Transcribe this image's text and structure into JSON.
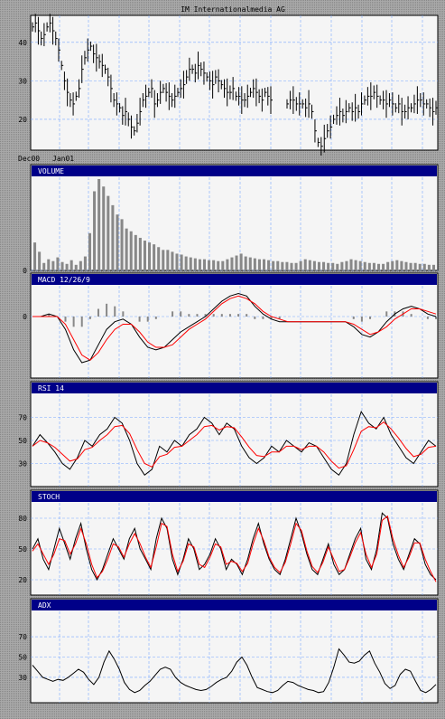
{
  "chart_data": {
    "type": "line",
    "title": "IM Internationalmedia AG",
    "x_start_labels": [
      "Dec00",
      "Jan01"
    ],
    "panels": [
      {
        "id": "price",
        "type": "ohlc",
        "title": "",
        "ylim": [
          12,
          47
        ],
        "yticks": [
          20,
          30,
          40
        ],
        "grid": true,
        "series": [
          {
            "values": [
              44,
              45,
              43,
              41,
              42,
              44,
              45,
              43,
              41,
              38,
              34,
              30,
              27,
              25,
              24,
              26,
              28,
              33,
              36,
              38,
              39,
              37,
              36,
              35,
              34,
              33,
              31,
              28,
              25,
              24,
              23,
              21,
              22,
              20,
              18,
              17,
              19,
              22,
              25,
              26,
              27,
              28,
              24,
              25,
              27,
              28,
              27,
              26,
              25,
              26,
              27,
              28,
              29,
              31,
              33,
              33,
              32,
              34,
              33,
              32,
              31,
              30,
              29,
              31,
              30,
              29,
              28,
              27,
              27,
              28,
              26,
              26,
              25,
              25,
              26,
              27,
              28,
              27,
              26,
              25,
              27,
              26,
              25
            ],
            "gaps": [
              [
                58,
                64
              ]
            ]
          },
          {
            "values": [
              24,
              25,
              25,
              24,
              24,
              24,
              23,
              24,
              22,
              17,
              14,
              13,
              15,
              17,
              18,
              20,
              21,
              22,
              21,
              22,
              23,
              22,
              23,
              22,
              24,
              25,
              26,
              26,
              27,
              26,
              25,
              25,
              24,
              25,
              24,
              23,
              24,
              22,
              22,
              23,
              23,
              24,
              25,
              25,
              24,
              24,
              23,
              22,
              23
            ]
          }
        ]
      },
      {
        "id": "volume",
        "type": "bar",
        "title": "VOLUME",
        "ylim": [
          0,
          100
        ],
        "yticks": [
          0
        ],
        "values": [
          30,
          20,
          8,
          12,
          10,
          14,
          9,
          7,
          11,
          6,
          10,
          15,
          40,
          85,
          98,
          90,
          80,
          70,
          60,
          55,
          45,
          42,
          38,
          35,
          32,
          30,
          28,
          25,
          22,
          22,
          20,
          18,
          17,
          15,
          14,
          13,
          12,
          12,
          11,
          11,
          10,
          10,
          12,
          14,
          16,
          18,
          15,
          14,
          13,
          12,
          12,
          11,
          10,
          10,
          9,
          9,
          8,
          8,
          10,
          12,
          11,
          10,
          9,
          9,
          8,
          8,
          7,
          9,
          10,
          12,
          11,
          10,
          9,
          8,
          8,
          7,
          7,
          9,
          10,
          11,
          10,
          9,
          8,
          8,
          7,
          7,
          6,
          6
        ]
      },
      {
        "id": "macd",
        "type": "line",
        "title": "MACD 12/26/9",
        "ylim": [
          -2.4,
          1.2
        ],
        "yticks": [
          0
        ],
        "series": [
          {
            "color": "#000000",
            "values": [
              0,
              0,
              0.1,
              0,
              -0.5,
              -1.3,
              -1.8,
              -1.7,
              -1.1,
              -0.5,
              -0.2,
              -0.1,
              -0.3,
              -0.8,
              -1.2,
              -1.3,
              -1.2,
              -0.9,
              -0.6,
              -0.4,
              -0.2,
              0,
              0.3,
              0.6,
              0.8,
              0.9,
              0.8,
              0.4,
              0.1,
              -0.1,
              -0.2,
              -0.2,
              -0.2,
              -0.2,
              -0.2,
              -0.2,
              -0.2,
              -0.2,
              -0.2,
              -0.4,
              -0.7,
              -0.8,
              -0.6,
              -0.2,
              0.1,
              0.3,
              0.4,
              0.3,
              0.1,
              0
            ]
          },
          {
            "color": "#ff0000",
            "values": [
              0,
              0,
              0,
              0,
              -0.3,
              -0.9,
              -1.5,
              -1.7,
              -1.4,
              -0.9,
              -0.5,
              -0.3,
              -0.3,
              -0.6,
              -1,
              -1.2,
              -1.2,
              -1.1,
              -0.8,
              -0.5,
              -0.3,
              -0.1,
              0.2,
              0.5,
              0.7,
              0.8,
              0.7,
              0.5,
              0.2,
              0,
              -0.1,
              -0.2,
              -0.2,
              -0.2,
              -0.2,
              -0.2,
              -0.2,
              -0.2,
              -0.2,
              -0.3,
              -0.5,
              -0.7,
              -0.6,
              -0.4,
              -0.1,
              0.1,
              0.3,
              0.3,
              0.2,
              0.1
            ]
          }
        ],
        "histogram": [
          0,
          0,
          0.1,
          0,
          -0.2,
          -0.4,
          -0.4,
          -0.1,
          0.3,
          0.5,
          0.4,
          0.2,
          0,
          -0.2,
          -0.2,
          -0.1,
          0,
          0.2,
          0.2,
          0.1,
          0.1,
          0.1,
          0.1,
          0.1,
          0.1,
          0.1,
          0.1,
          -0.1,
          -0.1,
          -0.1,
          -0.1,
          0,
          0,
          0,
          0,
          0,
          0,
          0,
          0,
          -0.1,
          -0.2,
          -0.1,
          0,
          0.2,
          0.2,
          0.2,
          0.1,
          0,
          -0.1,
          -0.1
        ]
      },
      {
        "id": "rsi",
        "type": "line",
        "title": "RSI 14",
        "ylim": [
          10,
          90
        ],
        "yticks": [
          30,
          50,
          70
        ],
        "series": [
          {
            "color": "#000000",
            "values": [
              45,
              55,
              48,
              40,
              30,
              25,
              35,
              50,
              45,
              55,
              60,
              70,
              65,
              50,
              30,
              20,
              25,
              45,
              40,
              50,
              45,
              55,
              60,
              70,
              65,
              55,
              65,
              60,
              45,
              35,
              30,
              35,
              45,
              40,
              50,
              45,
              40,
              48,
              45,
              35,
              25,
              20,
              30,
              55,
              75,
              65,
              60,
              70,
              55,
              45,
              35,
              30,
              40,
              50,
              45
            ]
          },
          {
            "color": "#ff0000",
            "values": [
              45,
              50,
              48,
              44,
              38,
              32,
              34,
              42,
              44,
              50,
              55,
              62,
              63,
              56,
              42,
              30,
              27,
              36,
              38,
              44,
              45,
              50,
              55,
              62,
              63,
              59,
              62,
              61,
              53,
              44,
              37,
              36,
              40,
              40,
              45,
              45,
              42,
              45,
              45,
              40,
              32,
              26,
              28,
              42,
              58,
              62,
              61,
              66,
              60,
              52,
              43,
              36,
              38,
              44,
              45
            ]
          }
        ]
      },
      {
        "id": "stoch",
        "type": "line",
        "title": "STOCH",
        "ylim": [
          5,
          95
        ],
        "yticks": [
          20,
          50,
          80
        ],
        "series": [
          {
            "color": "#000000",
            "values": [
              50,
              60,
              40,
              30,
              50,
              70,
              55,
              40,
              60,
              75,
              50,
              30,
              20,
              30,
              45,
              60,
              50,
              40,
              60,
              70,
              50,
              40,
              30,
              60,
              80,
              70,
              40,
              25,
              40,
              60,
              50,
              30,
              35,
              45,
              60,
              50,
              30,
              40,
              35,
              25,
              40,
              60,
              75,
              55,
              40,
              30,
              25,
              40,
              60,
              80,
              65,
              45,
              30,
              25,
              40,
              55,
              35,
              25,
              30,
              45,
              60,
              70,
              40,
              30,
              50,
              85,
              80,
              55,
              40,
              30,
              45,
              60,
              55,
              35,
              25,
              20
            ]
          },
          {
            "color": "#ff0000",
            "values": [
              48,
              55,
              45,
              35,
              45,
              60,
              58,
              45,
              55,
              70,
              55,
              35,
              22,
              28,
              40,
              55,
              52,
              42,
              55,
              65,
              55,
              42,
              32,
              52,
              75,
              72,
              45,
              28,
              38,
              55,
              52,
              35,
              32,
              42,
              55,
              52,
              35,
              38,
              36,
              28,
              36,
              55,
              70,
              58,
              42,
              32,
              27,
              37,
              55,
              75,
              68,
              48,
              33,
              27,
              37,
              52,
              40,
              28,
              30,
              42,
              56,
              66,
              45,
              32,
              45,
              78,
              82,
              60,
              44,
              32,
              42,
              56,
              56,
              40,
              28,
              18
            ]
          }
        ]
      },
      {
        "id": "adx",
        "type": "line",
        "title": "ADX",
        "ylim": [
          5,
          95
        ],
        "yticks": [
          30,
          50,
          70
        ],
        "series": [
          {
            "color": "#000000",
            "values": [
              42,
              36,
              30,
              28,
              26,
              28,
              27,
              30,
              34,
              38,
              35,
              28,
              23,
              30,
              45,
              56,
              48,
              38,
              25,
              18,
              15,
              17,
              22,
              26,
              32,
              38,
              40,
              38,
              30,
              25,
              22,
              20,
              18,
              17,
              18,
              21,
              25,
              28,
              30,
              36,
              45,
              50,
              42,
              30,
              20,
              18,
              16,
              15,
              17,
              22,
              26,
              25,
              22,
              20,
              18,
              17,
              15,
              16,
              25,
              40,
              58,
              52,
              45,
              44,
              46,
              52,
              56,
              44,
              35,
              24,
              19,
              22,
              33,
              38,
              36,
              26,
              17,
              15,
              18,
              23
            ]
          }
        ]
      }
    ]
  }
}
